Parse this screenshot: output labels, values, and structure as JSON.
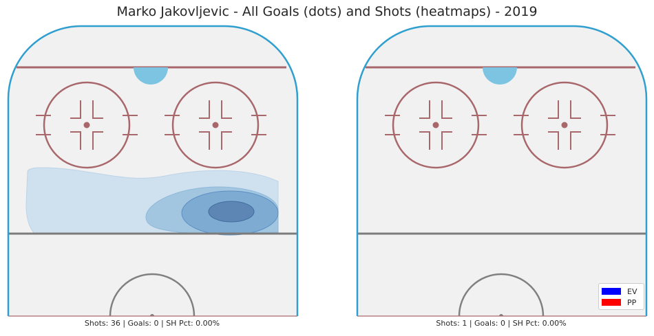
{
  "title": "Marko Jakovljevic - All Goals (dots) and Shots (heatmaps) - 2019",
  "colors": {
    "ice": "#f1f1f1",
    "boards": "#2f9fcf",
    "red_line": "#a8676b",
    "blue_line": "#7b7b7b",
    "crease": "#7cc4e2",
    "heat_levels": [
      "#cfe0ee",
      "#a2c6e0",
      "#7eabd2",
      "#5e86b5"
    ],
    "heat_edges": [
      "#bcd3e8",
      "#8fb9da",
      "#5d8fc4",
      "#3f6b9e"
    ]
  },
  "chart_data": [
    {
      "type": "heatmap",
      "panel": "left",
      "caption": "Shots: 36 | Goals: 0 | SH Pct: 0.00%",
      "goals": [],
      "density_levels": 4
    },
    {
      "type": "heatmap",
      "panel": "right",
      "caption": "Shots: 1 | Goals: 0 | SH Pct: 0.00%",
      "goals": [],
      "density_levels": 0,
      "legend": {
        "placement": "bottom-right",
        "entries": [
          {
            "label": "EV",
            "color": "#0000ff"
          },
          {
            "label": "PP",
            "color": "#ff0000"
          }
        ]
      }
    }
  ]
}
